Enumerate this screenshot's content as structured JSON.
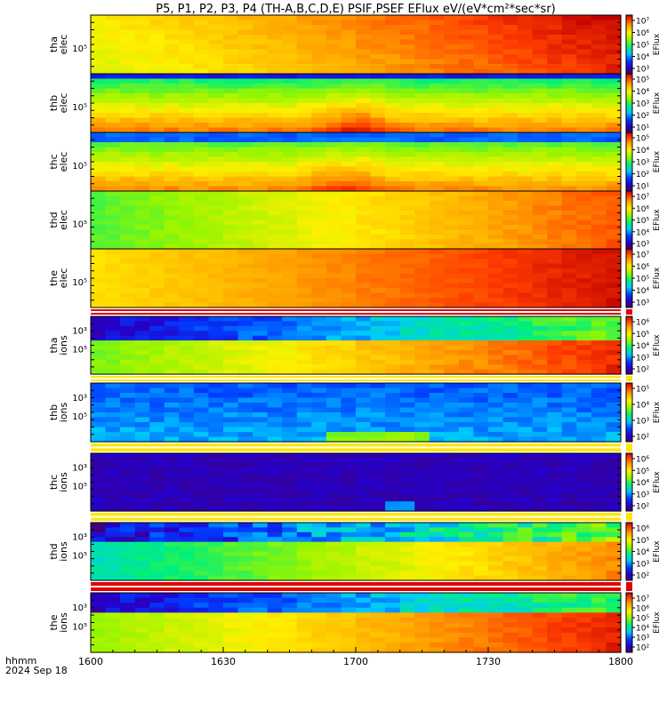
{
  "title": "P5, P1, P2, P3, P4 (TH-A,B,C,D,E) PSIF,PSEF EFlux eV/(eV*cm²*sec*sr)",
  "footer": {
    "line1": "hhmm",
    "line2": "2024 Sep 18"
  },
  "colorbar_unit": "EFlux",
  "chart_data": {
    "type": "heatmap",
    "x": {
      "ticks": [
        "1600",
        "1630",
        "1700",
        "1730",
        "1800"
      ],
      "range": [
        "16:00",
        "18:00"
      ],
      "tick_count": 5
    },
    "colorscale": "rainbow",
    "panels": [
      {
        "id": "tha-elec",
        "probe": "tha",
        "species": "elec",
        "ytick": "10⁵",
        "colorbar_ticks": [
          "10⁷",
          "10⁶",
          "10⁵",
          "10⁴",
          "10³"
        ],
        "separator": false
      },
      {
        "id": "thb-elec",
        "probe": "thb",
        "species": "elec",
        "ytick": "10⁵",
        "colorbar_ticks": [
          "10⁵",
          "10⁴",
          "10³",
          "10²",
          "10¹"
        ],
        "separator": false
      },
      {
        "id": "thc-elec",
        "probe": "thc",
        "species": "elec",
        "ytick": "10⁵",
        "colorbar_ticks": [
          "10⁵",
          "10⁴",
          "10³",
          "10²",
          "10¹"
        ],
        "separator": false
      },
      {
        "id": "thd-elec",
        "probe": "thd",
        "species": "elec",
        "ytick": "10⁵",
        "colorbar_ticks": [
          "10⁷",
          "10⁶",
          "10⁵",
          "10⁴",
          "10³"
        ],
        "separator": false
      },
      {
        "id": "the-elec",
        "probe": "the",
        "species": "elec",
        "ytick": "10⁵",
        "colorbar_ticks": [
          "10⁷",
          "10⁶",
          "10⁵",
          "10⁴",
          "10³"
        ],
        "separator": "red"
      },
      {
        "id": "tha-ions",
        "probe": "tha",
        "species": "ions",
        "ytick": "10⁵",
        "ytick2": "10³",
        "colorbar_ticks": [
          "10⁶",
          "10⁵",
          "10⁴",
          "10³",
          "10²"
        ],
        "separator": "yellow"
      },
      {
        "id": "thb-ions",
        "probe": "thb",
        "species": "ions",
        "ytick": "10⁵",
        "ytick2": "10³",
        "colorbar_ticks": [
          "10⁵",
          "10⁴",
          "10³",
          "10²"
        ],
        "separator": "yellow"
      },
      {
        "id": "thc-ions",
        "probe": "thc",
        "species": "ions",
        "ytick": "10⁵",
        "ytick2": "10³",
        "colorbar_ticks": [
          "10⁶",
          "10⁵",
          "10⁴",
          "10³",
          "10²"
        ],
        "separator": "yellow"
      },
      {
        "id": "thd-ions",
        "probe": "thd",
        "species": "ions",
        "ytick": "10⁵",
        "ytick2": "10³",
        "colorbar_ticks": [
          "10⁶",
          "10⁵",
          "10⁴",
          "10³",
          "10²"
        ],
        "separator": "red"
      },
      {
        "id": "the-ions",
        "probe": "the",
        "species": "ions",
        "ytick": "10⁵",
        "ytick2": "10³",
        "colorbar_ticks": [
          "10⁷",
          "10⁶",
          "10⁵",
          "10⁴",
          "10³",
          "10²"
        ],
        "separator": false
      }
    ]
  }
}
